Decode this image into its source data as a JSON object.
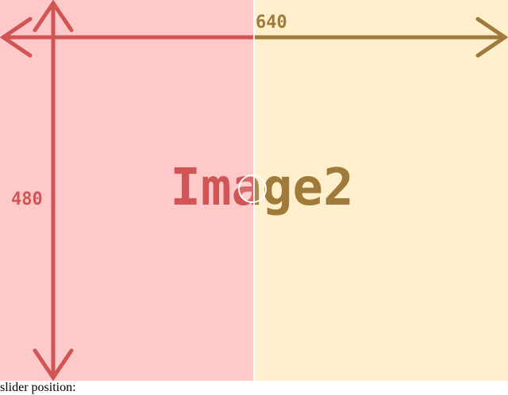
{
  "image_right": {
    "label": "Image2",
    "width_label": "640",
    "background": "#ffefcc",
    "ink": "#a07a3a"
  },
  "image_left": {
    "label": "Image2",
    "height_label": "480",
    "background": "#ffc9c9",
    "ink": "#d15555"
  },
  "slider": {
    "handle_icon": "circle-handle-icon",
    "status_prefix": "slider position:",
    "status_value": ""
  }
}
